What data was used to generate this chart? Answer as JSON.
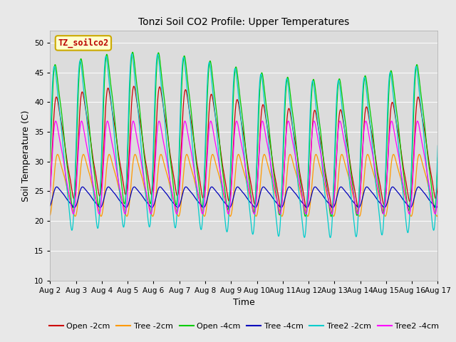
{
  "title": "Tonzi Soil CO2 Profile: Upper Temperatures",
  "xlabel": "Time",
  "ylabel": "Soil Temperature (C)",
  "ylim": [
    10,
    52
  ],
  "yticks": [
    10,
    15,
    20,
    25,
    30,
    35,
    40,
    45,
    50
  ],
  "bg_color": "#e8e8e8",
  "plot_bg_color": "#dcdcdc",
  "legend_label": "TZ_soilco2",
  "legend_box_facecolor": "#ffffcc",
  "legend_box_edgecolor": "#ccaa00",
  "series": [
    {
      "label": "Open -2cm",
      "color": "#cc0000"
    },
    {
      "label": "Tree -2cm",
      "color": "#ff9900"
    },
    {
      "label": "Open -4cm",
      "color": "#00cc00"
    },
    {
      "label": "Tree -4cm",
      "color": "#0000bb"
    },
    {
      "label": "Tree2 -2cm",
      "color": "#00cccc"
    },
    {
      "label": "Tree2 -4cm",
      "color": "#ff00ff"
    }
  ],
  "tick_labels": [
    "Aug 2",
    "Aug 3",
    "Aug 4",
    "Aug 5",
    "Aug 6",
    "Aug 7",
    "Aug 8",
    "Aug 9",
    "Aug 10",
    "Aug 11",
    "Aug 12",
    "Aug 13",
    "Aug 14",
    "Aug 15",
    "Aug 16",
    "Aug 17"
  ]
}
